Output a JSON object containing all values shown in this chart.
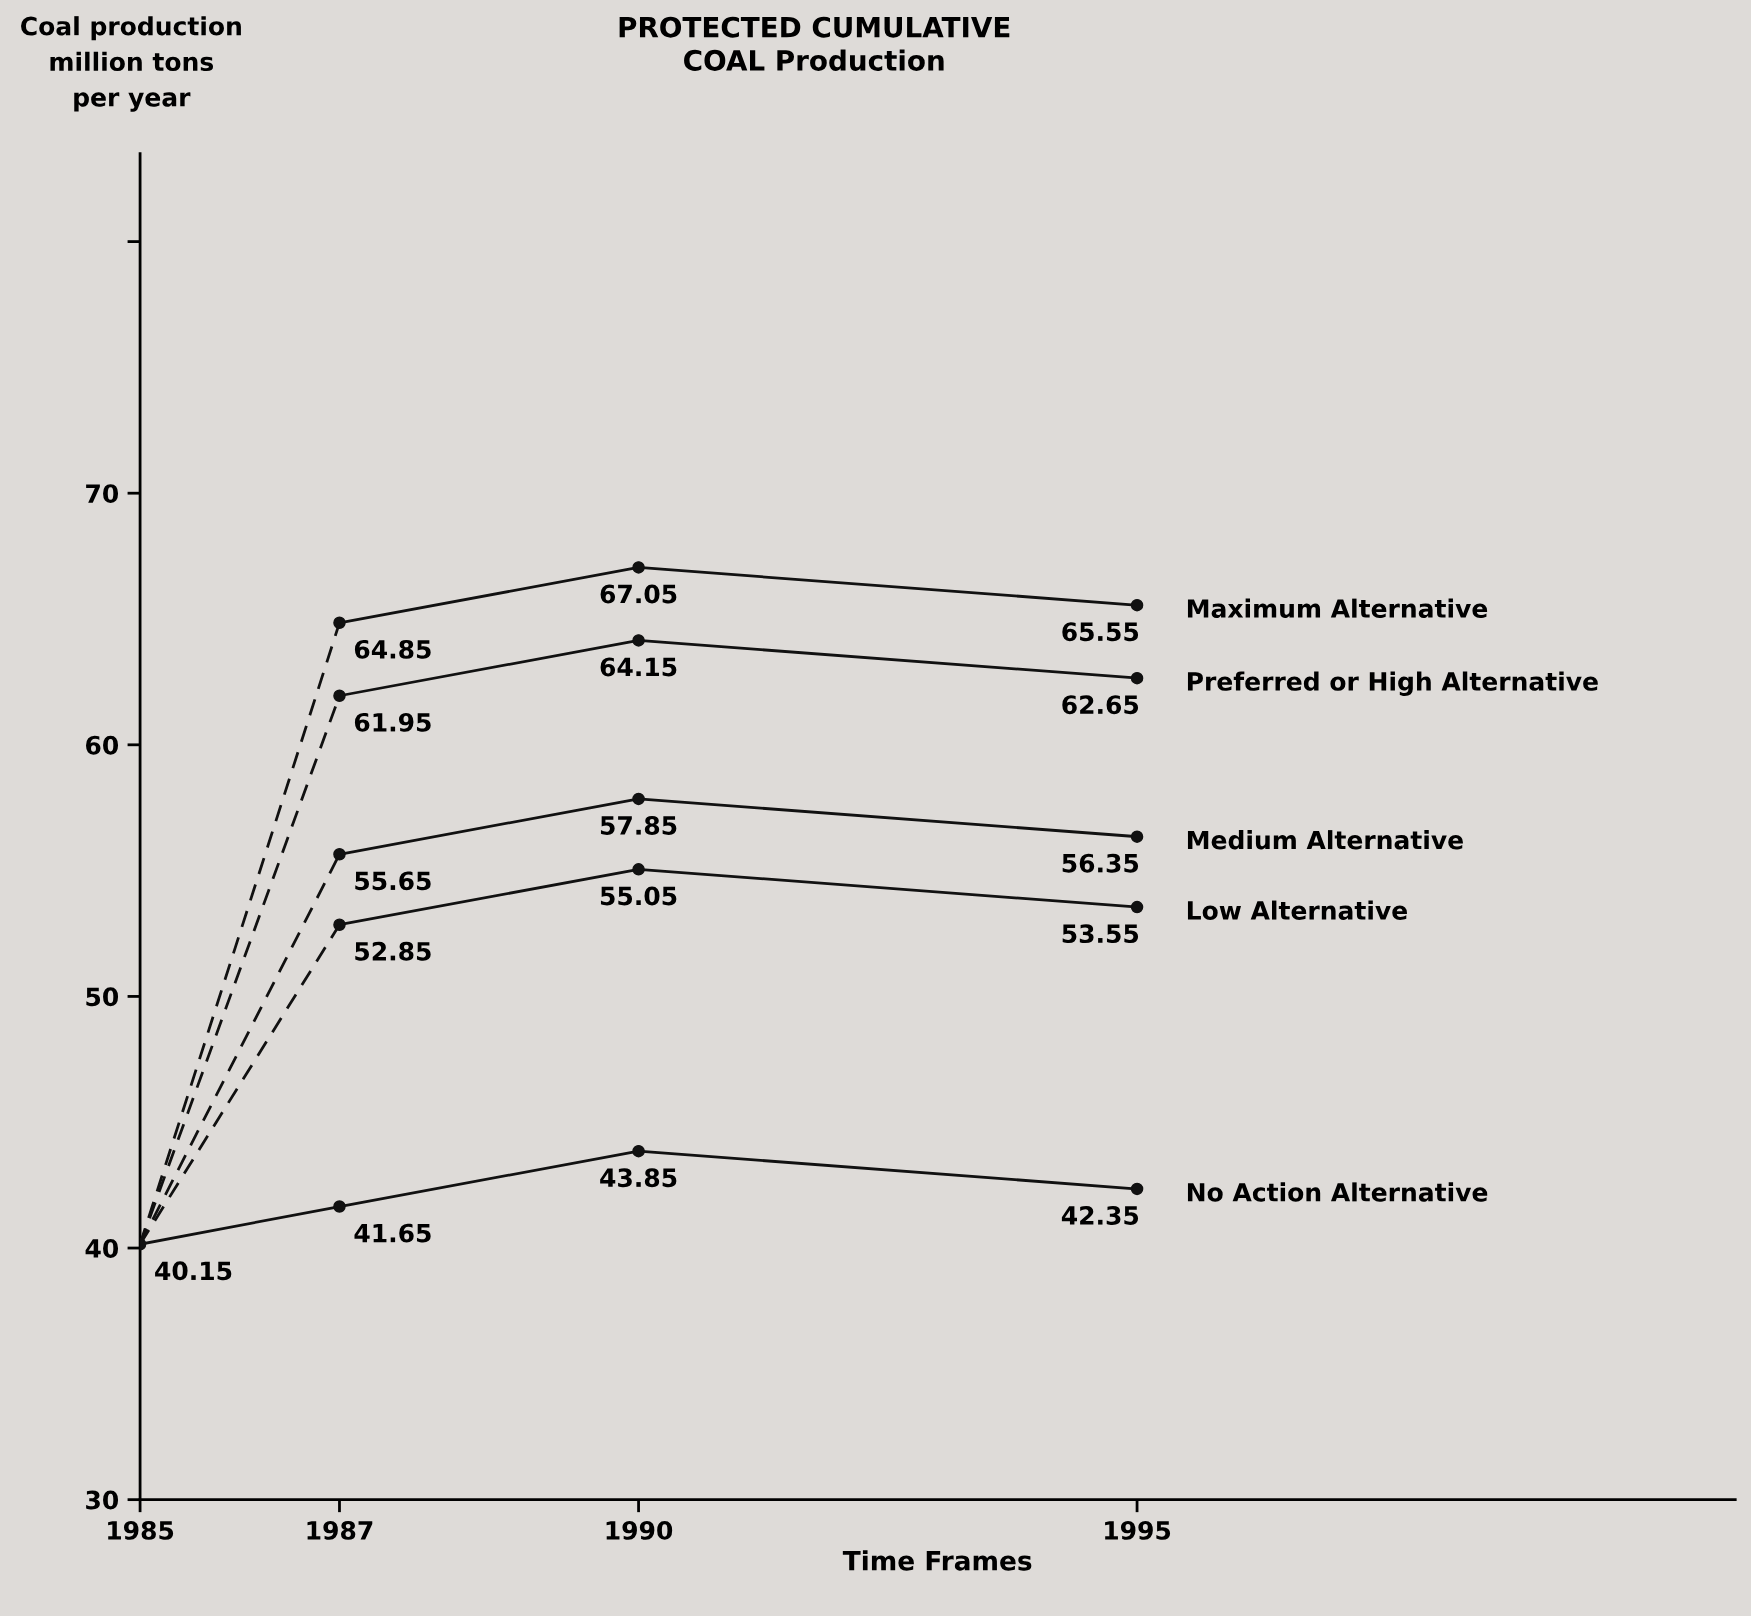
{
  "chart_data": {
    "type": "line",
    "title": "PROTECTED CUMULATIVE\nCOAL Production",
    "xlabel": "Time Frames",
    "ylabel": "Coal production\nmillion tons\nper year",
    "xlim": [
      1985,
      2001
    ],
    "xticks": [
      1985,
      1987,
      1990,
      1995
    ],
    "ylim": [
      30,
      83.5
    ],
    "yticks": [
      30,
      40,
      50,
      60,
      70,
      {
        "value": 80,
        "label": null
      }
    ],
    "grid": false,
    "legend": false,
    "marker": "circle",
    "line_style": "solid",
    "series": [
      {
        "name": "Maximum Alternative",
        "color": "#111111",
        "x": [
          1987,
          1990,
          1995
        ],
        "values": [
          64.85,
          67.05,
          65.55
        ],
        "value_labels": [
          "64.85",
          "67.05",
          "65.55"
        ]
      },
      {
        "name": "Preferred or High Alternative",
        "color": "#111111",
        "x": [
          1987,
          1990,
          1995
        ],
        "values": [
          61.95,
          64.15,
          62.65
        ],
        "value_labels": [
          "61.95",
          "64.15",
          "62.65"
        ]
      },
      {
        "name": "Medium Alternative",
        "color": "#111111",
        "x": [
          1987,
          1990,
          1995
        ],
        "values": [
          55.65,
          57.85,
          56.35
        ],
        "value_labels": [
          "55.65",
          "57.85",
          "56.35"
        ]
      },
      {
        "name": "Low Alternative",
        "color": "#111111",
        "x": [
          1987,
          1990,
          1995
        ],
        "values": [
          52.85,
          55.05,
          53.55
        ],
        "value_labels": [
          "52.85",
          "55.05",
          "53.55"
        ]
      },
      {
        "name": "No Action Alternative",
        "color": "#111111",
        "x": [
          1985,
          1987,
          1990,
          1995
        ],
        "values": [
          40.15,
          41.65,
          43.85,
          42.35
        ],
        "value_labels": [
          "40.15",
          "41.65",
          "43.85",
          "42.35"
        ]
      },
      {
        "color": "#111111",
        "x": [
          1985,
          1987
        ],
        "values": [
          40.15,
          64.85
        ],
        "line_style": "dashed",
        "marker": "none"
      },
      {
        "color": "#111111",
        "x": [
          1985,
          1987
        ],
        "values": [
          40.15,
          61.95
        ],
        "line_style": "dashed",
        "marker": "none"
      },
      {
        "color": "#111111",
        "x": [
          1985,
          1987
        ],
        "values": [
          40.15,
          55.65
        ],
        "line_style": "dashed",
        "marker": "none"
      },
      {
        "color": "#111111",
        "x": [
          1985,
          1987
        ],
        "values": [
          40.15,
          52.85
        ],
        "line_style": "dashed",
        "marker": "none"
      }
    ]
  }
}
